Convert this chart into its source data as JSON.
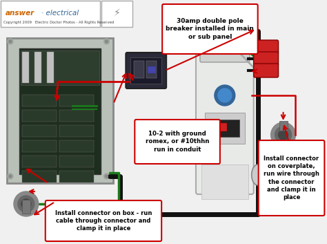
{
  "bg_color": "#f0f0f0",
  "panel_color": "#b0b8b0",
  "panel_inner_color": "#1e2e1e",
  "heater_color": "#e8e8e8",
  "wire_black": "#111111",
  "wire_red": "#cc0000",
  "wire_green": "#1a7a1a",
  "wire_gray": "#c0c0c0",
  "box1_text": "30amp double pole\nbreaker installed in main\nor sub panel",
  "box2_text": "10-2 with ground\nromex, or #10thhn\nrun in conduit",
  "box3_text": "Install connector on box - run\ncable through connector and\nclamp it in place",
  "box4_text": "Install connector\non coverplate,\nrun wire through\nthe connector\nand clamp it in\nplace",
  "logo_answer": "answer",
  "logo_electrical": " electrical",
  "copyright": "Copyright 2009   Electric Doctor Photos - All Rights Reserved",
  "red_border": "#cc0000",
  "annotation_bg": "#ffffff"
}
